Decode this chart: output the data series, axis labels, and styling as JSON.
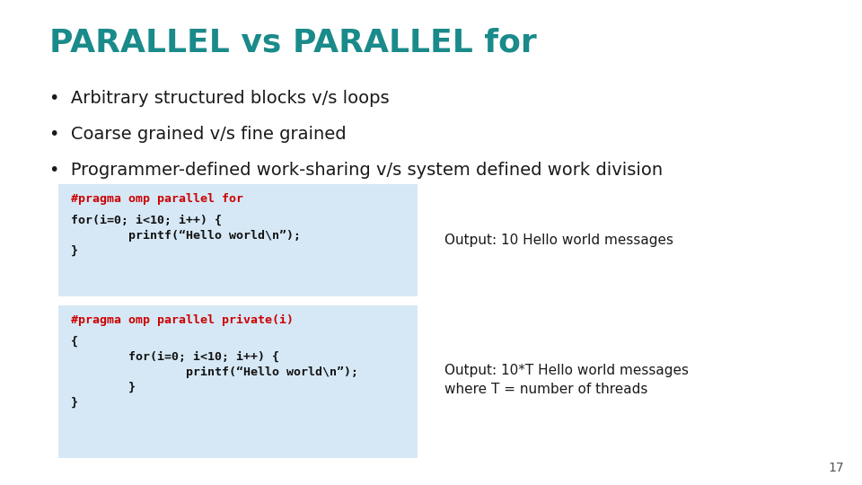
{
  "title": "PARALLEL vs PARALLEL for",
  "title_color": "#1a8a8a",
  "title_fontsize": 26,
  "background_color": "#ffffff",
  "bullet_color": "#1a1a1a",
  "bullet_fontsize": 14,
  "bullets": [
    "Arbitrary structured blocks v/s loops",
    "Coarse grained v/s fine grained",
    "Programmer-defined work-sharing v/s system defined work division"
  ],
  "code_box_bg": "#d6e8f5",
  "code1_pragma": "#pragma omp parallel for",
  "code1_body_lines": [
    "for(i=0; i<10; i++) {",
    "        printf(“Hello world\\n”);",
    "}"
  ],
  "code2_pragma": "#pragma omp parallel private(i)",
  "code2_body_lines": [
    "{",
    "        for(i=0; i<10; i++) {",
    "                printf(“Hello world\\n”);",
    "        }",
    "}"
  ],
  "output1": "Output: 10 Hello world messages",
  "output2_line1": "Output: 10*T Hello world messages",
  "output2_line2": "where T = number of threads",
  "code_color_red": "#cc0000",
  "code_color_black": "#111111",
  "code_fontsize": 9.5,
  "output_fontsize": 11,
  "page_number": "17",
  "page_number_fontsize": 10
}
